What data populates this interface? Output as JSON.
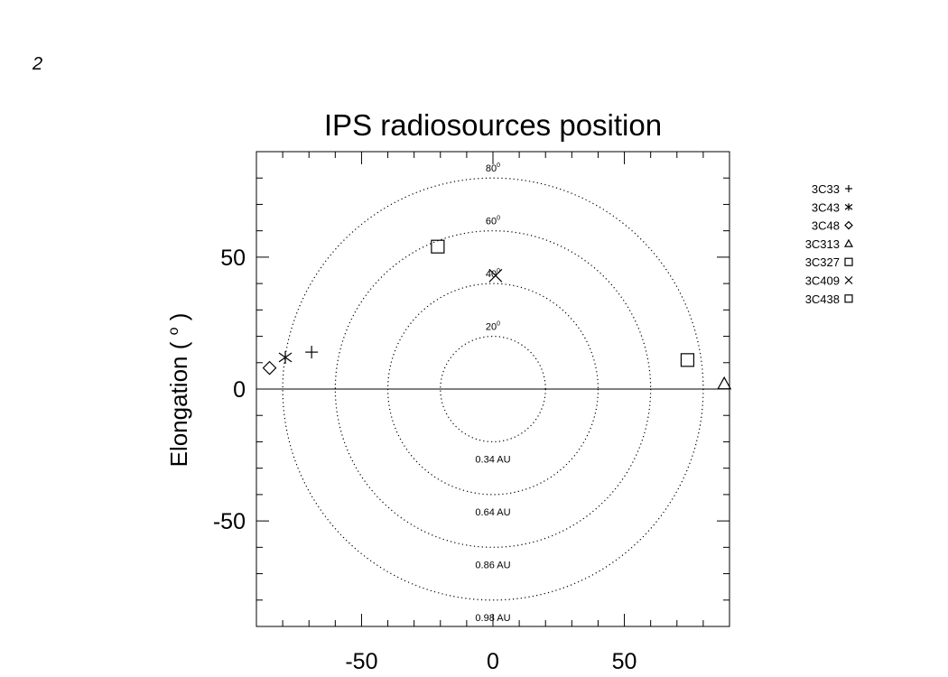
{
  "page_marker": "2",
  "chart_data": {
    "type": "scatter",
    "title": "IPS radiosources position",
    "xlabel": "",
    "ylabel": "Elongation",
    "ylabel_unit": "o",
    "xlim": [
      -90,
      90
    ],
    "ylim": [
      -90,
      90
    ],
    "x_ticks": [
      -50,
      0,
      50
    ],
    "y_ticks": [
      -50,
      0,
      50
    ],
    "circles": [
      {
        "radius": 20,
        "top_label": "20",
        "bottom_label": "0.34 AU"
      },
      {
        "radius": 40,
        "top_label": "40",
        "bottom_label": "0.64 AU"
      },
      {
        "radius": 60,
        "top_label": "60",
        "bottom_label": "0.86 AU"
      },
      {
        "radius": 80,
        "top_label": "80",
        "bottom_label": "0.98 AU"
      }
    ],
    "series": [
      {
        "name": "3C33",
        "marker": "plus",
        "x": -69,
        "y": 14
      },
      {
        "name": "3C43",
        "marker": "asterisk",
        "x": -79,
        "y": 12
      },
      {
        "name": "3C48",
        "marker": "diamond",
        "x": -85,
        "y": 8
      },
      {
        "name": "3C313",
        "marker": "triangle",
        "x": 88,
        "y": 2
      },
      {
        "name": "3C327",
        "marker": "square",
        "x": -21,
        "y": 54
      },
      {
        "name": "3C409",
        "marker": "cross",
        "x": 1,
        "y": 43
      },
      {
        "name": "3C438",
        "marker": "square",
        "x": 74,
        "y": 11
      }
    ]
  }
}
